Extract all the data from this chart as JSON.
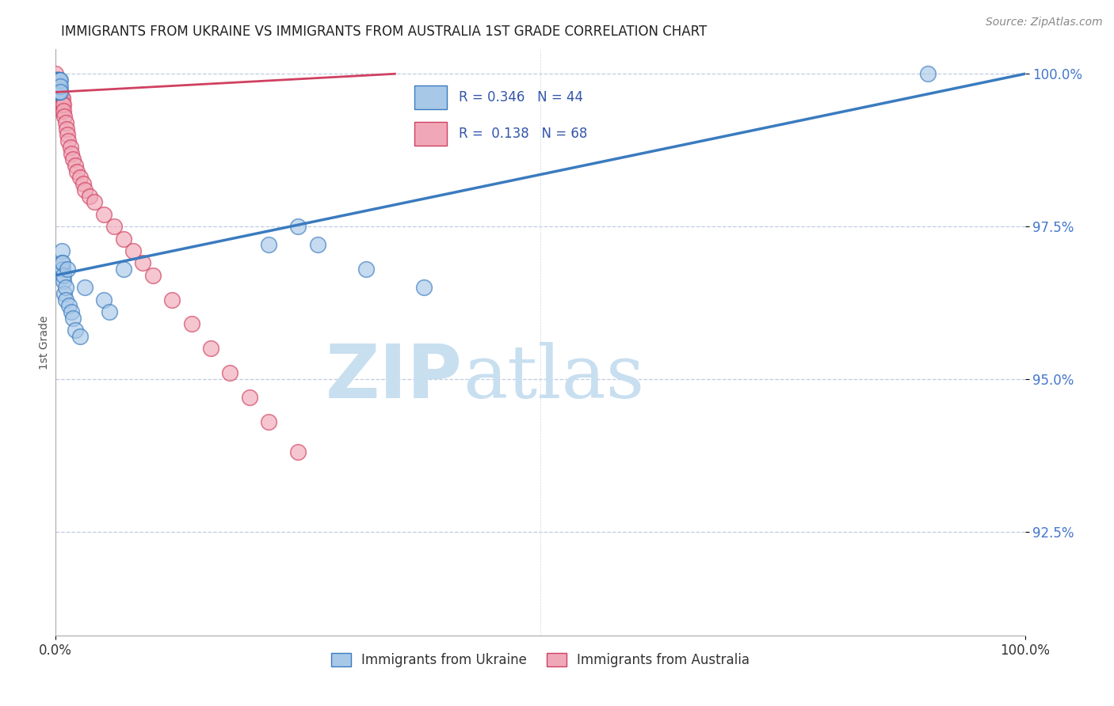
{
  "title": "IMMIGRANTS FROM UKRAINE VS IMMIGRANTS FROM AUSTRALIA 1ST GRADE CORRELATION CHART",
  "source_text": "Source: ZipAtlas.com",
  "ylabel": "1st Grade",
  "legend_label_ukraine": "Immigrants from Ukraine",
  "legend_label_australia": "Immigrants from Australia",
  "r_ukraine": 0.346,
  "n_ukraine": 44,
  "r_australia": 0.138,
  "n_australia": 68,
  "color_ukraine": "#a8c8e8",
  "color_ukraine_line": "#3a7bbf",
  "color_australia": "#f0a8b8",
  "color_australia_line": "#d04060",
  "watermark_zip_color": "#c8dff0",
  "watermark_atlas_color": "#c8dff0",
  "xlim": [
    0.0,
    1.0
  ],
  "ylim": [
    0.908,
    1.004
  ],
  "yticks": [
    0.925,
    0.95,
    0.975,
    1.0
  ],
  "ytick_labels": [
    "92.5%",
    "95.0%",
    "97.5%",
    "100.0%"
  ],
  "ukraine_x": [
    0.001,
    0.001,
    0.001,
    0.002,
    0.002,
    0.002,
    0.002,
    0.003,
    0.003,
    0.003,
    0.003,
    0.003,
    0.004,
    0.004,
    0.004,
    0.004,
    0.005,
    0.005,
    0.005,
    0.006,
    0.006,
    0.007,
    0.007,
    0.008,
    0.008,
    0.009,
    0.01,
    0.01,
    0.012,
    0.014,
    0.016,
    0.018,
    0.02,
    0.025,
    0.03,
    0.05,
    0.055,
    0.07,
    0.22,
    0.25,
    0.27,
    0.32,
    0.38,
    0.9
  ],
  "ukraine_y": [
    0.999,
    0.998,
    0.997,
    0.999,
    0.998,
    0.997,
    0.999,
    0.999,
    0.998,
    0.997,
    0.999,
    0.998,
    0.999,
    0.998,
    0.997,
    0.999,
    0.999,
    0.998,
    0.997,
    0.971,
    0.969,
    0.968,
    0.969,
    0.966,
    0.967,
    0.964,
    0.965,
    0.963,
    0.968,
    0.962,
    0.961,
    0.96,
    0.958,
    0.957,
    0.965,
    0.963,
    0.961,
    0.968,
    0.972,
    0.975,
    0.972,
    0.968,
    0.965,
    1.0
  ],
  "australia_x": [
    0.0,
    0.0,
    0.0,
    0.0,
    0.0,
    0.0,
    0.0,
    0.0,
    0.0,
    0.001,
    0.001,
    0.001,
    0.001,
    0.001,
    0.001,
    0.001,
    0.002,
    0.002,
    0.002,
    0.002,
    0.002,
    0.002,
    0.003,
    0.003,
    0.003,
    0.003,
    0.004,
    0.004,
    0.004,
    0.004,
    0.005,
    0.005,
    0.005,
    0.006,
    0.006,
    0.006,
    0.007,
    0.007,
    0.008,
    0.008,
    0.009,
    0.01,
    0.011,
    0.012,
    0.013,
    0.015,
    0.016,
    0.018,
    0.02,
    0.022,
    0.025,
    0.028,
    0.03,
    0.035,
    0.04,
    0.05,
    0.06,
    0.07,
    0.08,
    0.09,
    0.1,
    0.12,
    0.14,
    0.16,
    0.18,
    0.2,
    0.22,
    0.25
  ],
  "australia_y": [
    1.0,
    0.999,
    0.998,
    0.997,
    0.996,
    0.999,
    0.998,
    0.997,
    0.999,
    0.999,
    0.998,
    0.997,
    0.996,
    0.999,
    0.998,
    0.997,
    0.999,
    0.998,
    0.997,
    0.996,
    0.995,
    0.998,
    0.998,
    0.997,
    0.996,
    0.998,
    0.997,
    0.996,
    0.997,
    0.996,
    0.997,
    0.996,
    0.995,
    0.996,
    0.995,
    0.994,
    0.996,
    0.995,
    0.995,
    0.994,
    0.993,
    0.992,
    0.991,
    0.99,
    0.989,
    0.988,
    0.987,
    0.986,
    0.985,
    0.984,
    0.983,
    0.982,
    0.981,
    0.98,
    0.979,
    0.977,
    0.975,
    0.973,
    0.971,
    0.969,
    0.967,
    0.963,
    0.959,
    0.955,
    0.951,
    0.947,
    0.943,
    0.938
  ],
  "line_ukraine_x0": 0.0,
  "line_ukraine_y0": 0.967,
  "line_ukraine_x1": 1.0,
  "line_ukraine_y1": 1.0,
  "line_australia_x0": 0.0,
  "line_australia_y0": 0.997,
  "line_australia_x1": 0.35,
  "line_australia_y1": 1.0
}
